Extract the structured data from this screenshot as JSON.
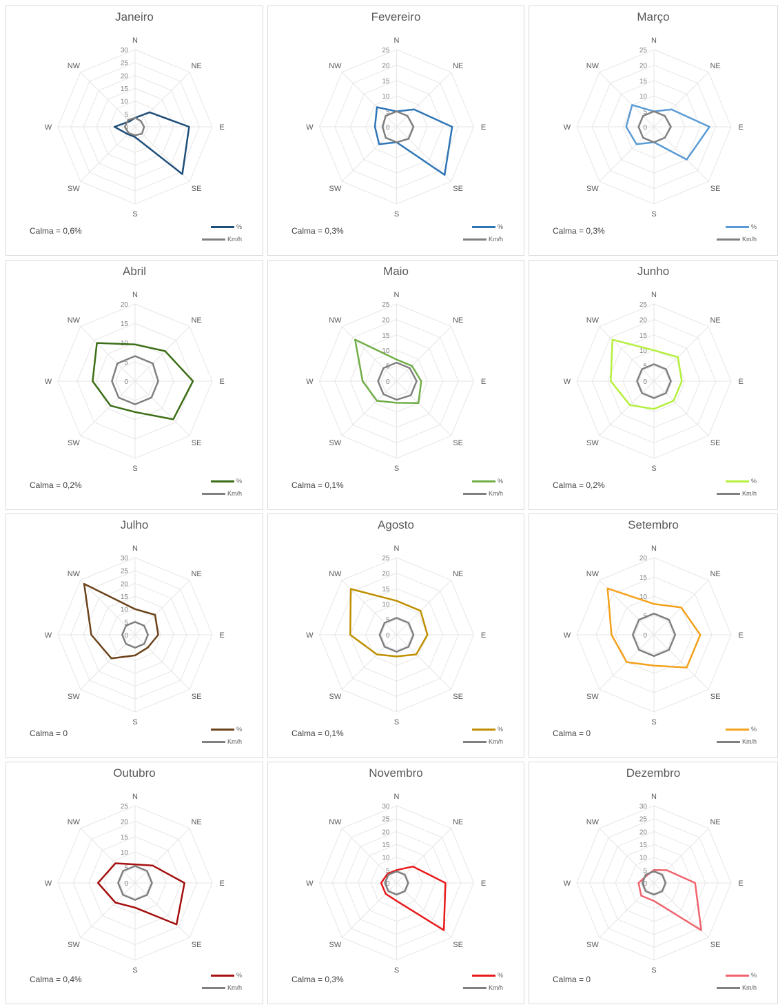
{
  "chart_data": [
    {
      "type": "radar",
      "title": "Janeiro",
      "calma": "Calma = 0,6%",
      "directions": [
        "N",
        "NE",
        "E",
        "SE",
        "S",
        "SW",
        "W",
        "NW"
      ],
      "rlim": [
        0,
        30
      ],
      "ticks": [
        "0",
        "5",
        "10",
        "15",
        "20",
        "25",
        "30"
      ],
      "color": "#1F4E79",
      "series": [
        {
          "name": "%",
          "values": [
            3.5,
            8,
            21,
            26,
            4,
            4,
            8,
            3
          ]
        },
        {
          "name": "Km/h",
          "values": [
            3.5,
            3.2,
            3.5,
            3.8,
            3.3,
            3.5,
            4,
            3.8
          ]
        }
      ]
    },
    {
      "type": "radar",
      "title": "Fevereiro",
      "calma": "Calma = 0,3%",
      "directions": [
        "N",
        "NE",
        "E",
        "SE",
        "S",
        "SW",
        "W",
        "NW"
      ],
      "rlim": [
        0,
        25
      ],
      "ticks": [
        "0",
        "5",
        "10",
        "15",
        "20",
        "25"
      ],
      "color": "#2E75B6",
      "series": [
        {
          "name": "%",
          "values": [
            5,
            8,
            18,
            22,
            5,
            8,
            7,
            9
          ]
        },
        {
          "name": "Km/h",
          "values": [
            5,
            5,
            5.5,
            5.5,
            5,
            5,
            4.5,
            5
          ]
        }
      ]
    },
    {
      "type": "radar",
      "title": "Março",
      "calma": "Calma = 0,3%",
      "directions": [
        "N",
        "NE",
        "E",
        "SE",
        "S",
        "SW",
        "W",
        "NW"
      ],
      "rlim": [
        0,
        25
      ],
      "ticks": [
        "0",
        "5",
        "10",
        "15",
        "20",
        "25"
      ],
      "color": "#5B9BD5",
      "series": [
        {
          "name": "%",
          "values": [
            5,
            8,
            18,
            15,
            5,
            8,
            9,
            10
          ]
        },
        {
          "name": "Km/h",
          "values": [
            5,
            5,
            5.5,
            5,
            5,
            5,
            5,
            5
          ]
        }
      ]
    },
    {
      "type": "radar",
      "title": "Abril",
      "calma": "Calma = 0,2%",
      "directions": [
        "N",
        "NE",
        "E",
        "SE",
        "S",
        "SW",
        "W",
        "NW"
      ],
      "rlim": [
        0,
        20
      ],
      "ticks": [
        "0",
        "5",
        "10",
        "15",
        "20"
      ],
      "color": "#3B6E16",
      "series": [
        {
          "name": "%",
          "values": [
            9.5,
            11,
            15,
            14,
            8,
            9,
            11,
            14
          ]
        },
        {
          "name": "Km/h",
          "values": [
            6.5,
            6.5,
            6,
            6,
            6,
            6,
            6,
            6.5
          ]
        }
      ]
    },
    {
      "type": "radar",
      "title": "Maio",
      "calma": "Calma = 0,1%",
      "directions": [
        "N",
        "NE",
        "E",
        "SE",
        "S",
        "SW",
        "W",
        "NW"
      ],
      "rlim": [
        0,
        25
      ],
      "ticks": [
        "0",
        "5",
        "10",
        "15",
        "20",
        "25"
      ],
      "color": "#70AD47",
      "series": [
        {
          "name": "%",
          "values": [
            7,
            7,
            8,
            10,
            7,
            9,
            11,
            19
          ]
        },
        {
          "name": "Km/h",
          "values": [
            6,
            6,
            6.5,
            6.5,
            6,
            6,
            6,
            6
          ]
        }
      ]
    },
    {
      "type": "radar",
      "title": "Junho",
      "calma": "Calma = 0,2%",
      "directions": [
        "N",
        "NE",
        "E",
        "SE",
        "S",
        "SW",
        "W",
        "NW"
      ],
      "rlim": [
        0,
        25
      ],
      "ticks": [
        "0",
        "5",
        "10",
        "15",
        "20",
        "25"
      ],
      "color": "#B4F03C",
      "series": [
        {
          "name": "%",
          "values": [
            10,
            11,
            9,
            9,
            9,
            11,
            14,
            19
          ]
        },
        {
          "name": "Km/h",
          "values": [
            5.5,
            5.5,
            5.5,
            5.5,
            5.5,
            5.5,
            5.5,
            5.5
          ]
        }
      ]
    },
    {
      "type": "radar",
      "title": "Julho",
      "calma": "Calma = 0",
      "directions": [
        "N",
        "NE",
        "E",
        "SE",
        "S",
        "SW",
        "W",
        "NW"
      ],
      "rlim": [
        0,
        30
      ],
      "ticks": [
        "0",
        "5",
        "10",
        "15",
        "20",
        "25",
        "30"
      ],
      "color": "#6B4219",
      "series": [
        {
          "name": "%",
          "values": [
            10,
            11,
            9,
            7,
            8,
            13,
            17,
            28
          ]
        },
        {
          "name": "Km/h",
          "values": [
            5,
            5,
            5,
            5,
            5,
            5,
            5,
            5
          ]
        }
      ]
    },
    {
      "type": "radar",
      "title": "Agosto",
      "calma": "Calma = 0,1%",
      "directions": [
        "N",
        "NE",
        "E",
        "SE",
        "S",
        "SW",
        "W",
        "NW"
      ],
      "rlim": [
        0,
        25
      ],
      "ticks": [
        "0",
        "5",
        "10",
        "15",
        "20",
        "25"
      ],
      "color": "#BF8F00",
      "series": [
        {
          "name": "%",
          "values": [
            11,
            11,
            10,
            9,
            7,
            9,
            15,
            21
          ]
        },
        {
          "name": "Km/h",
          "values": [
            5.5,
            5.5,
            5.5,
            5.5,
            5.5,
            5.5,
            5.5,
            5.5
          ]
        }
      ]
    },
    {
      "type": "radar",
      "title": "Setembro",
      "calma": "Calma = 0",
      "directions": [
        "N",
        "NE",
        "E",
        "SE",
        "S",
        "SW",
        "W",
        "NW"
      ],
      "rlim": [
        0,
        20
      ],
      "ticks": [
        "0",
        "5",
        "10",
        "15",
        "20"
      ],
      "color": "#F4A11B",
      "series": [
        {
          "name": "%",
          "values": [
            8,
            10,
            12,
            12,
            8,
            10,
            11,
            17
          ]
        },
        {
          "name": "Km/h",
          "values": [
            5.5,
            5.5,
            5.5,
            5.5,
            5.5,
            5.5,
            5.5,
            5.5
          ]
        }
      ]
    },
    {
      "type": "radar",
      "title": "Outubro",
      "calma": "Calma = 0,4%",
      "directions": [
        "N",
        "NE",
        "E",
        "SE",
        "S",
        "SW",
        "W",
        "NW"
      ],
      "rlim": [
        0,
        25
      ],
      "ticks": [
        "0",
        "5",
        "10",
        "15",
        "20",
        "25"
      ],
      "color": "#A50F0F",
      "series": [
        {
          "name": "%",
          "values": [
            6,
            8,
            16,
            19,
            8,
            9,
            12,
            9
          ]
        },
        {
          "name": "Km/h",
          "values": [
            5.5,
            5.5,
            5.5,
            5.5,
            5.5,
            5.5,
            5.5,
            5.5
          ]
        }
      ]
    },
    {
      "type": "radar",
      "title": "Novembro",
      "calma": "Calma = 0,3%",
      "directions": [
        "N",
        "NE",
        "E",
        "SE",
        "S",
        "SW",
        "W",
        "NW"
      ],
      "rlim": [
        0,
        30
      ],
      "ticks": [
        "0",
        "5",
        "10",
        "15",
        "20",
        "25",
        "30"
      ],
      "color": "#E8191A",
      "series": [
        {
          "name": "%",
          "values": [
            5,
            9,
            19,
            26,
            7,
            6,
            6,
            5
          ]
        },
        {
          "name": "Km/h",
          "values": [
            4.5,
            4.5,
            4.5,
            4.5,
            4.5,
            4.5,
            4.5,
            4.5
          ]
        }
      ]
    },
    {
      "type": "radar",
      "title": "Dezembro",
      "calma": "Calma = 0",
      "directions": [
        "N",
        "NE",
        "E",
        "SE",
        "S",
        "SW",
        "W",
        "NW"
      ],
      "rlim": [
        0,
        30
      ],
      "ticks": [
        "0",
        "5",
        "10",
        "15",
        "20",
        "25",
        "30"
      ],
      "color": "#F0646E",
      "series": [
        {
          "name": "%",
          "values": [
            5,
            7,
            16,
            26,
            7,
            7,
            6,
            4
          ]
        },
        {
          "name": "Km/h",
          "values": [
            4.5,
            4.5,
            4.5,
            4.5,
            4.5,
            4.5,
            4.5,
            4.5
          ]
        }
      ]
    }
  ]
}
